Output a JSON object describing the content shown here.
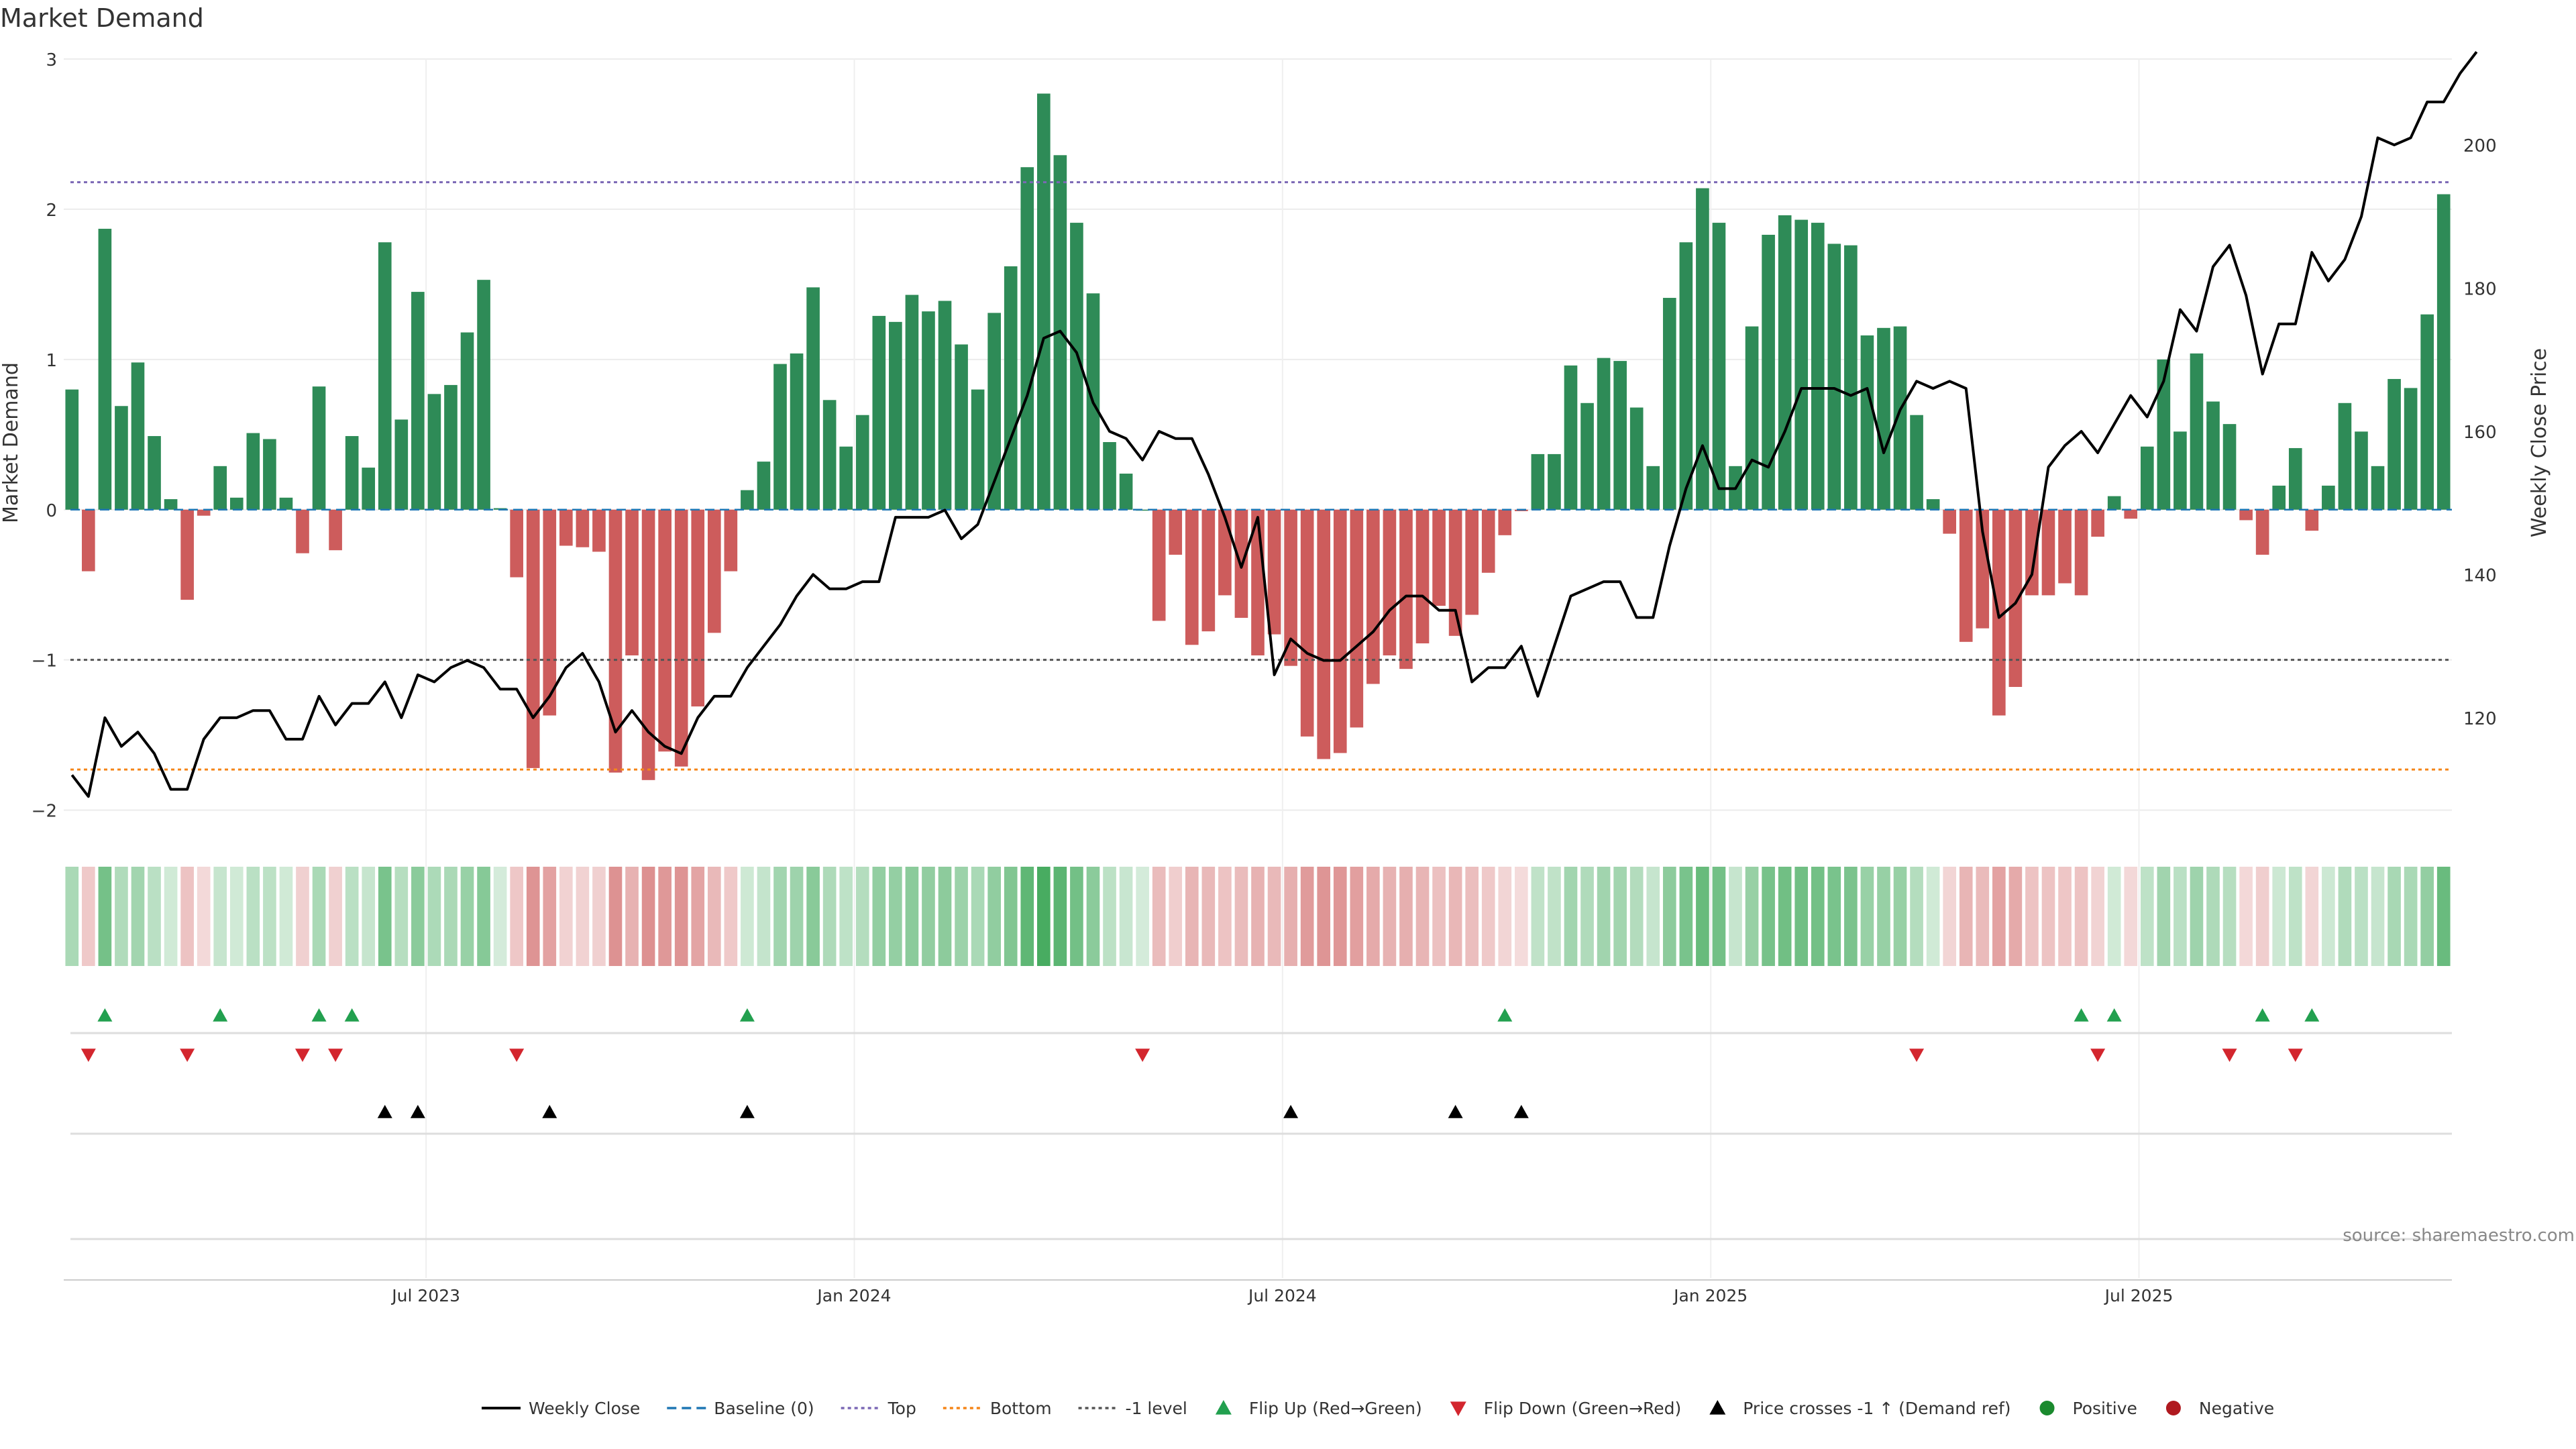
{
  "chart_data": {
    "type": "bar",
    "title": "Market Demand",
    "ylabel": "Market Demand",
    "y2label": "Weekly Close Price",
    "ylim": [
      -2.1,
      3.0
    ],
    "y2lim": [
      105,
      212
    ],
    "yticks": [
      3,
      2,
      1,
      0,
      -1,
      -2
    ],
    "ytick_labels": [
      "3",
      "2",
      "1",
      "0",
      "−1",
      "−2"
    ],
    "y2ticks": [
      200,
      180,
      160,
      140,
      120
    ],
    "y2tick_labels": [
      "200",
      "180",
      "160",
      "140",
      "120"
    ],
    "date_ticks": [
      {
        "label": "Jul 2023",
        "week": 22
      },
      {
        "label": "Jan 2024",
        "week": 48
      },
      {
        "label": "Jul 2024",
        "week": 74
      },
      {
        "label": "Jan 2025",
        "week": 100
      },
      {
        "label": "Jul 2025",
        "week": 126
      }
    ],
    "reference_lines": {
      "top": 2.18,
      "bottom": -1.73,
      "minus_one": -1.0,
      "baseline": 0.0
    },
    "demand": [
      0.8,
      -0.41,
      1.87,
      0.69,
      0.98,
      0.49,
      0.07,
      -0.6,
      -0.04,
      0.29,
      0.08,
      0.51,
      0.47,
      0.08,
      -0.29,
      0.82,
      -0.27,
      0.49,
      0.28,
      1.78,
      0.6,
      1.45,
      0.77,
      0.83,
      1.18,
      1.53,
      0.01,
      -0.45,
      -1.72,
      -1.37,
      -0.24,
      -0.25,
      -0.28,
      -1.75,
      -0.97,
      -1.8,
      -1.61,
      -1.71,
      -1.31,
      -0.82,
      -0.41,
      0.13,
      0.32,
      0.97,
      1.04,
      1.48,
      0.73,
      0.42,
      0.63,
      1.29,
      1.25,
      1.43,
      1.32,
      1.39,
      1.1,
      0.8,
      1.31,
      1.62,
      2.28,
      2.77,
      2.36,
      1.91,
      1.44,
      0.45,
      0.24,
      0.0,
      -0.74,
      -0.3,
      -0.9,
      -0.81,
      -0.57,
      -0.72,
      -0.97,
      -0.83,
      -1.04,
      -1.51,
      -1.66,
      -1.62,
      -1.45,
      -1.16,
      -0.97,
      -1.06,
      -0.89,
      -0.64,
      -0.84,
      -0.7,
      -0.42,
      -0.17,
      -0.01,
      0.37,
      0.37,
      0.96,
      0.71,
      1.01,
      0.99,
      0.68,
      0.29,
      1.41,
      1.78,
      2.14,
      1.91,
      0.29,
      1.22,
      1.83,
      1.96,
      1.93,
      1.91,
      1.77,
      1.76,
      1.16,
      1.21,
      1.22,
      0.63,
      0.07,
      -0.16,
      -0.88,
      -0.79,
      -1.37,
      -1.18,
      -0.57,
      -0.57,
      -0.49,
      -0.57,
      -0.18,
      0.09,
      -0.06,
      0.42,
      1.0,
      0.52,
      1.04,
      0.72,
      0.57,
      -0.07,
      -0.3,
      0.16,
      0.41,
      -0.14,
      0.16,
      0.71,
      0.52,
      0.29,
      0.87,
      0.81,
      1.3,
      2.1
    ],
    "weekly_close": [
      112,
      109,
      120,
      116,
      118,
      115,
      110,
      110,
      117,
      120,
      120,
      121,
      121,
      117,
      117,
      123,
      119,
      122,
      122,
      125,
      120,
      126,
      125,
      127,
      128,
      127,
      124,
      124,
      120,
      123,
      127,
      129,
      125,
      118,
      121,
      118,
      116,
      115,
      120,
      123,
      123,
      127,
      130,
      133,
      137,
      140,
      138,
      138,
      139,
      139,
      148,
      148,
      148,
      149,
      145,
      147,
      153,
      159,
      165,
      173,
      174,
      171,
      164,
      160,
      159,
      156,
      160,
      159,
      159,
      154,
      148,
      141,
      148,
      126,
      131,
      129,
      128,
      128,
      130,
      132,
      135,
      137,
      137,
      135,
      135,
      125,
      127,
      127,
      130,
      123,
      130,
      137,
      138,
      139,
      139,
      134,
      134,
      144,
      152,
      158,
      152,
      152,
      156,
      155,
      160,
      166,
      166,
      166,
      165,
      166,
      157,
      163,
      167,
      166,
      167,
      166,
      146,
      134,
      136,
      140,
      155,
      158,
      160,
      157,
      161,
      165,
      162,
      167,
      177,
      174,
      183,
      186,
      179,
      168,
      175,
      175,
      185,
      181,
      184,
      190,
      201,
      200,
      201,
      206,
      206,
      210,
      213
    ],
    "flip_up_weeks": [
      2,
      9,
      15,
      17,
      41,
      87,
      122,
      124,
      133,
      136
    ],
    "flip_down_weeks": [
      1,
      7,
      14,
      16,
      27,
      65,
      112,
      123,
      131,
      135
    ],
    "price_cross_weeks": [
      19,
      21,
      29,
      41,
      74,
      84,
      88
    ],
    "legend": [
      {
        "label": "Weekly Close",
        "icon": "solid-line-icon",
        "color": "#000000"
      },
      {
        "label": "Baseline (0)",
        "icon": "dashed-line-icon",
        "color": "#1f77b4"
      },
      {
        "label": "Top",
        "icon": "dotted-line-icon",
        "color": "#7b68b5"
      },
      {
        "label": "Bottom",
        "icon": "dotted-line-icon",
        "color": "#f58518"
      },
      {
        "label": "-1 level",
        "icon": "dotted-line-icon",
        "color": "#555555"
      },
      {
        "label": "Flip Up (Red→Green)",
        "icon": "triangle-up-icon",
        "color": "#22a04f"
      },
      {
        "label": "Flip Down (Green→Red)",
        "icon": "triangle-down-icon",
        "color": "#d3262e"
      },
      {
        "label": "Price crosses -1 ↑ (Demand ref)",
        "icon": "triangle-up-icon",
        "color": "#000000"
      },
      {
        "label": "Positive",
        "icon": "circle-icon",
        "color": "#1a8a2e"
      },
      {
        "label": "Negative",
        "icon": "circle-icon",
        "color": "#b0191f"
      }
    ],
    "source": "source: sharemaestro.com",
    "colors": {
      "positive": "#2e8b57",
      "negative": "#cd5c5c",
      "heat_positive": "#3aa655",
      "heat_negative": "#cd5c5c"
    }
  }
}
